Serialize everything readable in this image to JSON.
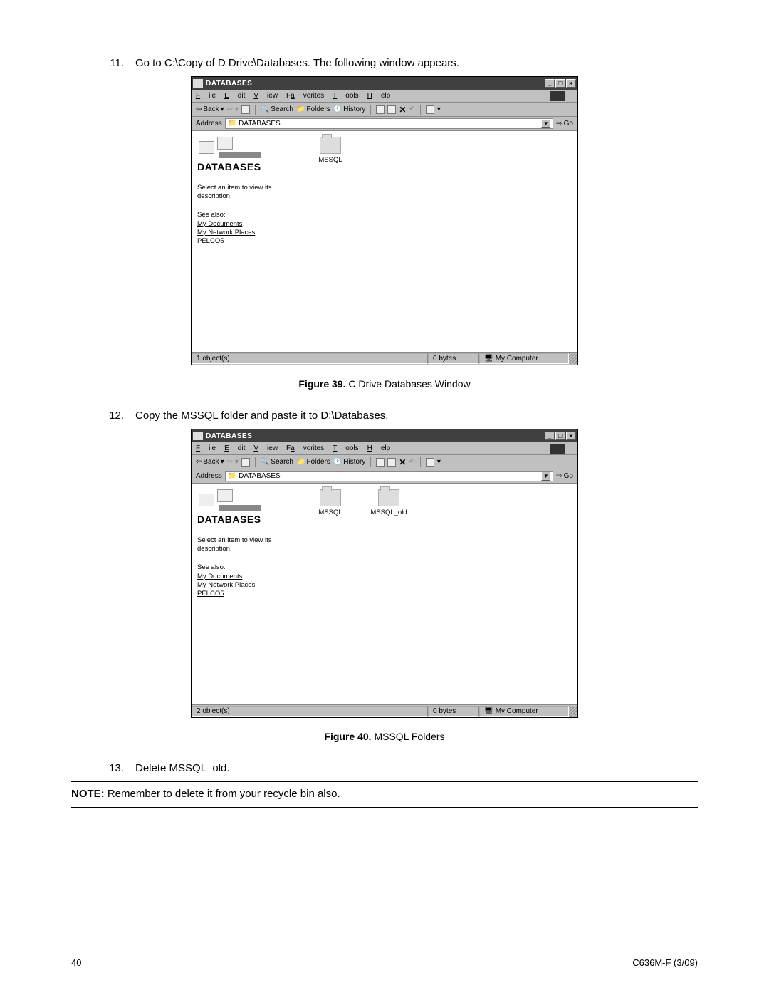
{
  "steps": {
    "s11_num": "11.",
    "s11_text": "Go to C:\\Copy of D Drive\\Databases. The following window appears.",
    "s12_num": "12.",
    "s12_text": "Copy the MSSQL folder and paste it to D:\\Databases.",
    "s13_num": "13.",
    "s13_text": "Delete MSSQL_old."
  },
  "figcaptions": {
    "fig39_label": "Figure 39.",
    "fig39_text": "  C Drive Databases Window",
    "fig40_label": "Figure 40.",
    "fig40_text": "  MSSQL Folders"
  },
  "note": {
    "label": "NOTE:",
    "text": "  Remember to delete it from your recycle bin also."
  },
  "footer": {
    "page": "40",
    "doc": "C636M-F (3/09)"
  },
  "win_common": {
    "title": "DATABASES",
    "menus": {
      "file": "File",
      "edit": "Edit",
      "view": "View",
      "fav": "Favorites",
      "tools": "Tools",
      "help": "Help"
    },
    "toolbar": {
      "back": "Back",
      "search": "Search",
      "folders": "Folders",
      "history": "History"
    },
    "address_label": "Address",
    "address_value": "DATABASES",
    "go": "Go",
    "panel_title": "DATABASES",
    "panel_desc": "Select an item to view its description.",
    "see_also": "See also:",
    "link1": "My Documents",
    "link2": "My Network Places",
    "link3": "PELCO5",
    "status_bytes": "0 bytes",
    "status_loc": "My Computer"
  },
  "win1": {
    "folders": [
      "MSSQL"
    ],
    "status_objects": "1 object(s)"
  },
  "win2": {
    "folders": [
      "MSSQL",
      "MSSQL_old"
    ],
    "status_objects": "2 object(s)"
  }
}
